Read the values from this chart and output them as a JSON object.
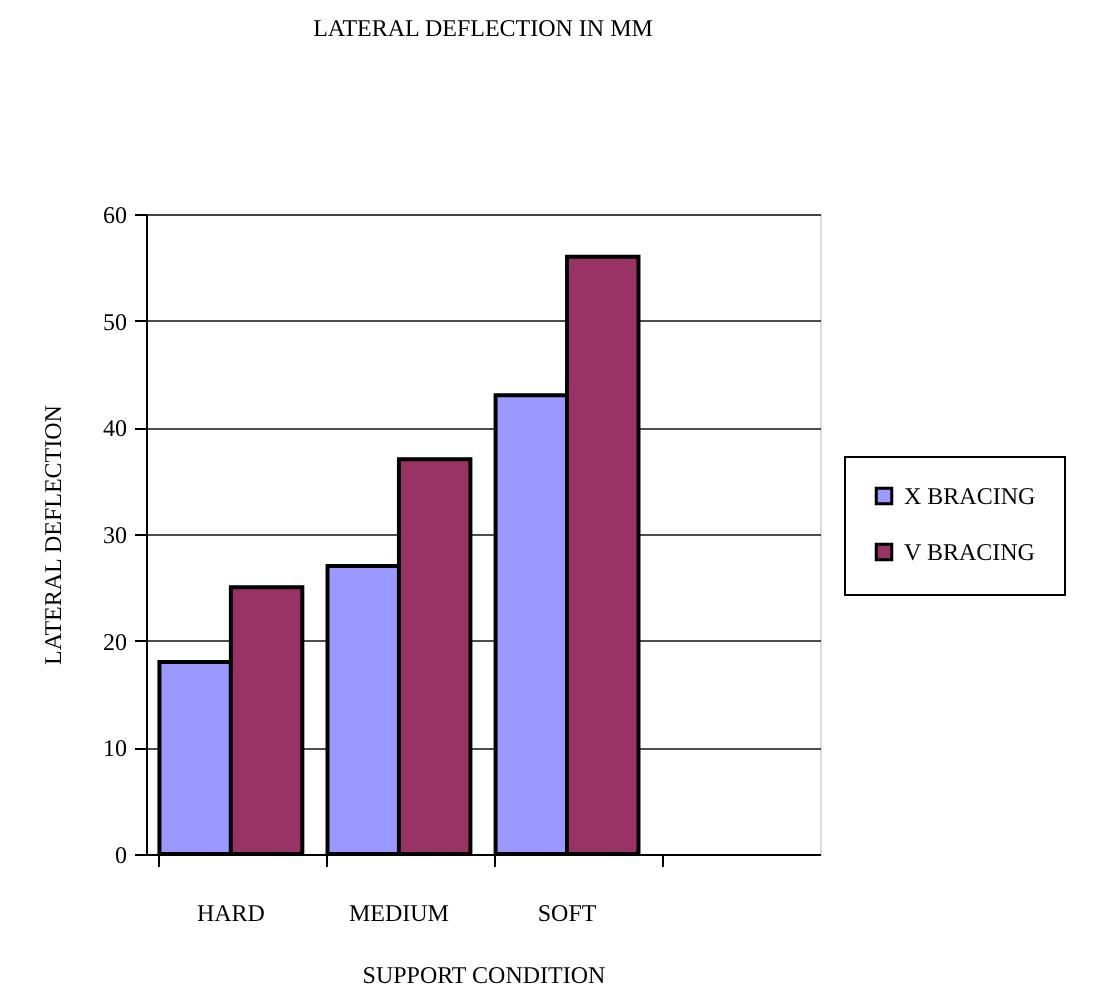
{
  "chart_data": {
    "type": "bar",
    "title": "LATERAL DEFLECTION IN MM",
    "xlabel": "SUPPORT CONDITION",
    "ylabel": "LATERAL DEFLECTION",
    "categories": [
      "HARD",
      "MEDIUM",
      "SOFT",
      null
    ],
    "series": [
      {
        "name": "X BRACING",
        "color": "#9999ff",
        "values": [
          18,
          27,
          43,
          null
        ]
      },
      {
        "name": "V BRACING",
        "color": "#993366",
        "values": [
          25,
          37,
          56,
          null
        ]
      }
    ],
    "ylim": [
      0,
      60
    ],
    "yticks": [
      0,
      10,
      20,
      30,
      40,
      50,
      60
    ],
    "grid": "y",
    "legend": "right"
  }
}
